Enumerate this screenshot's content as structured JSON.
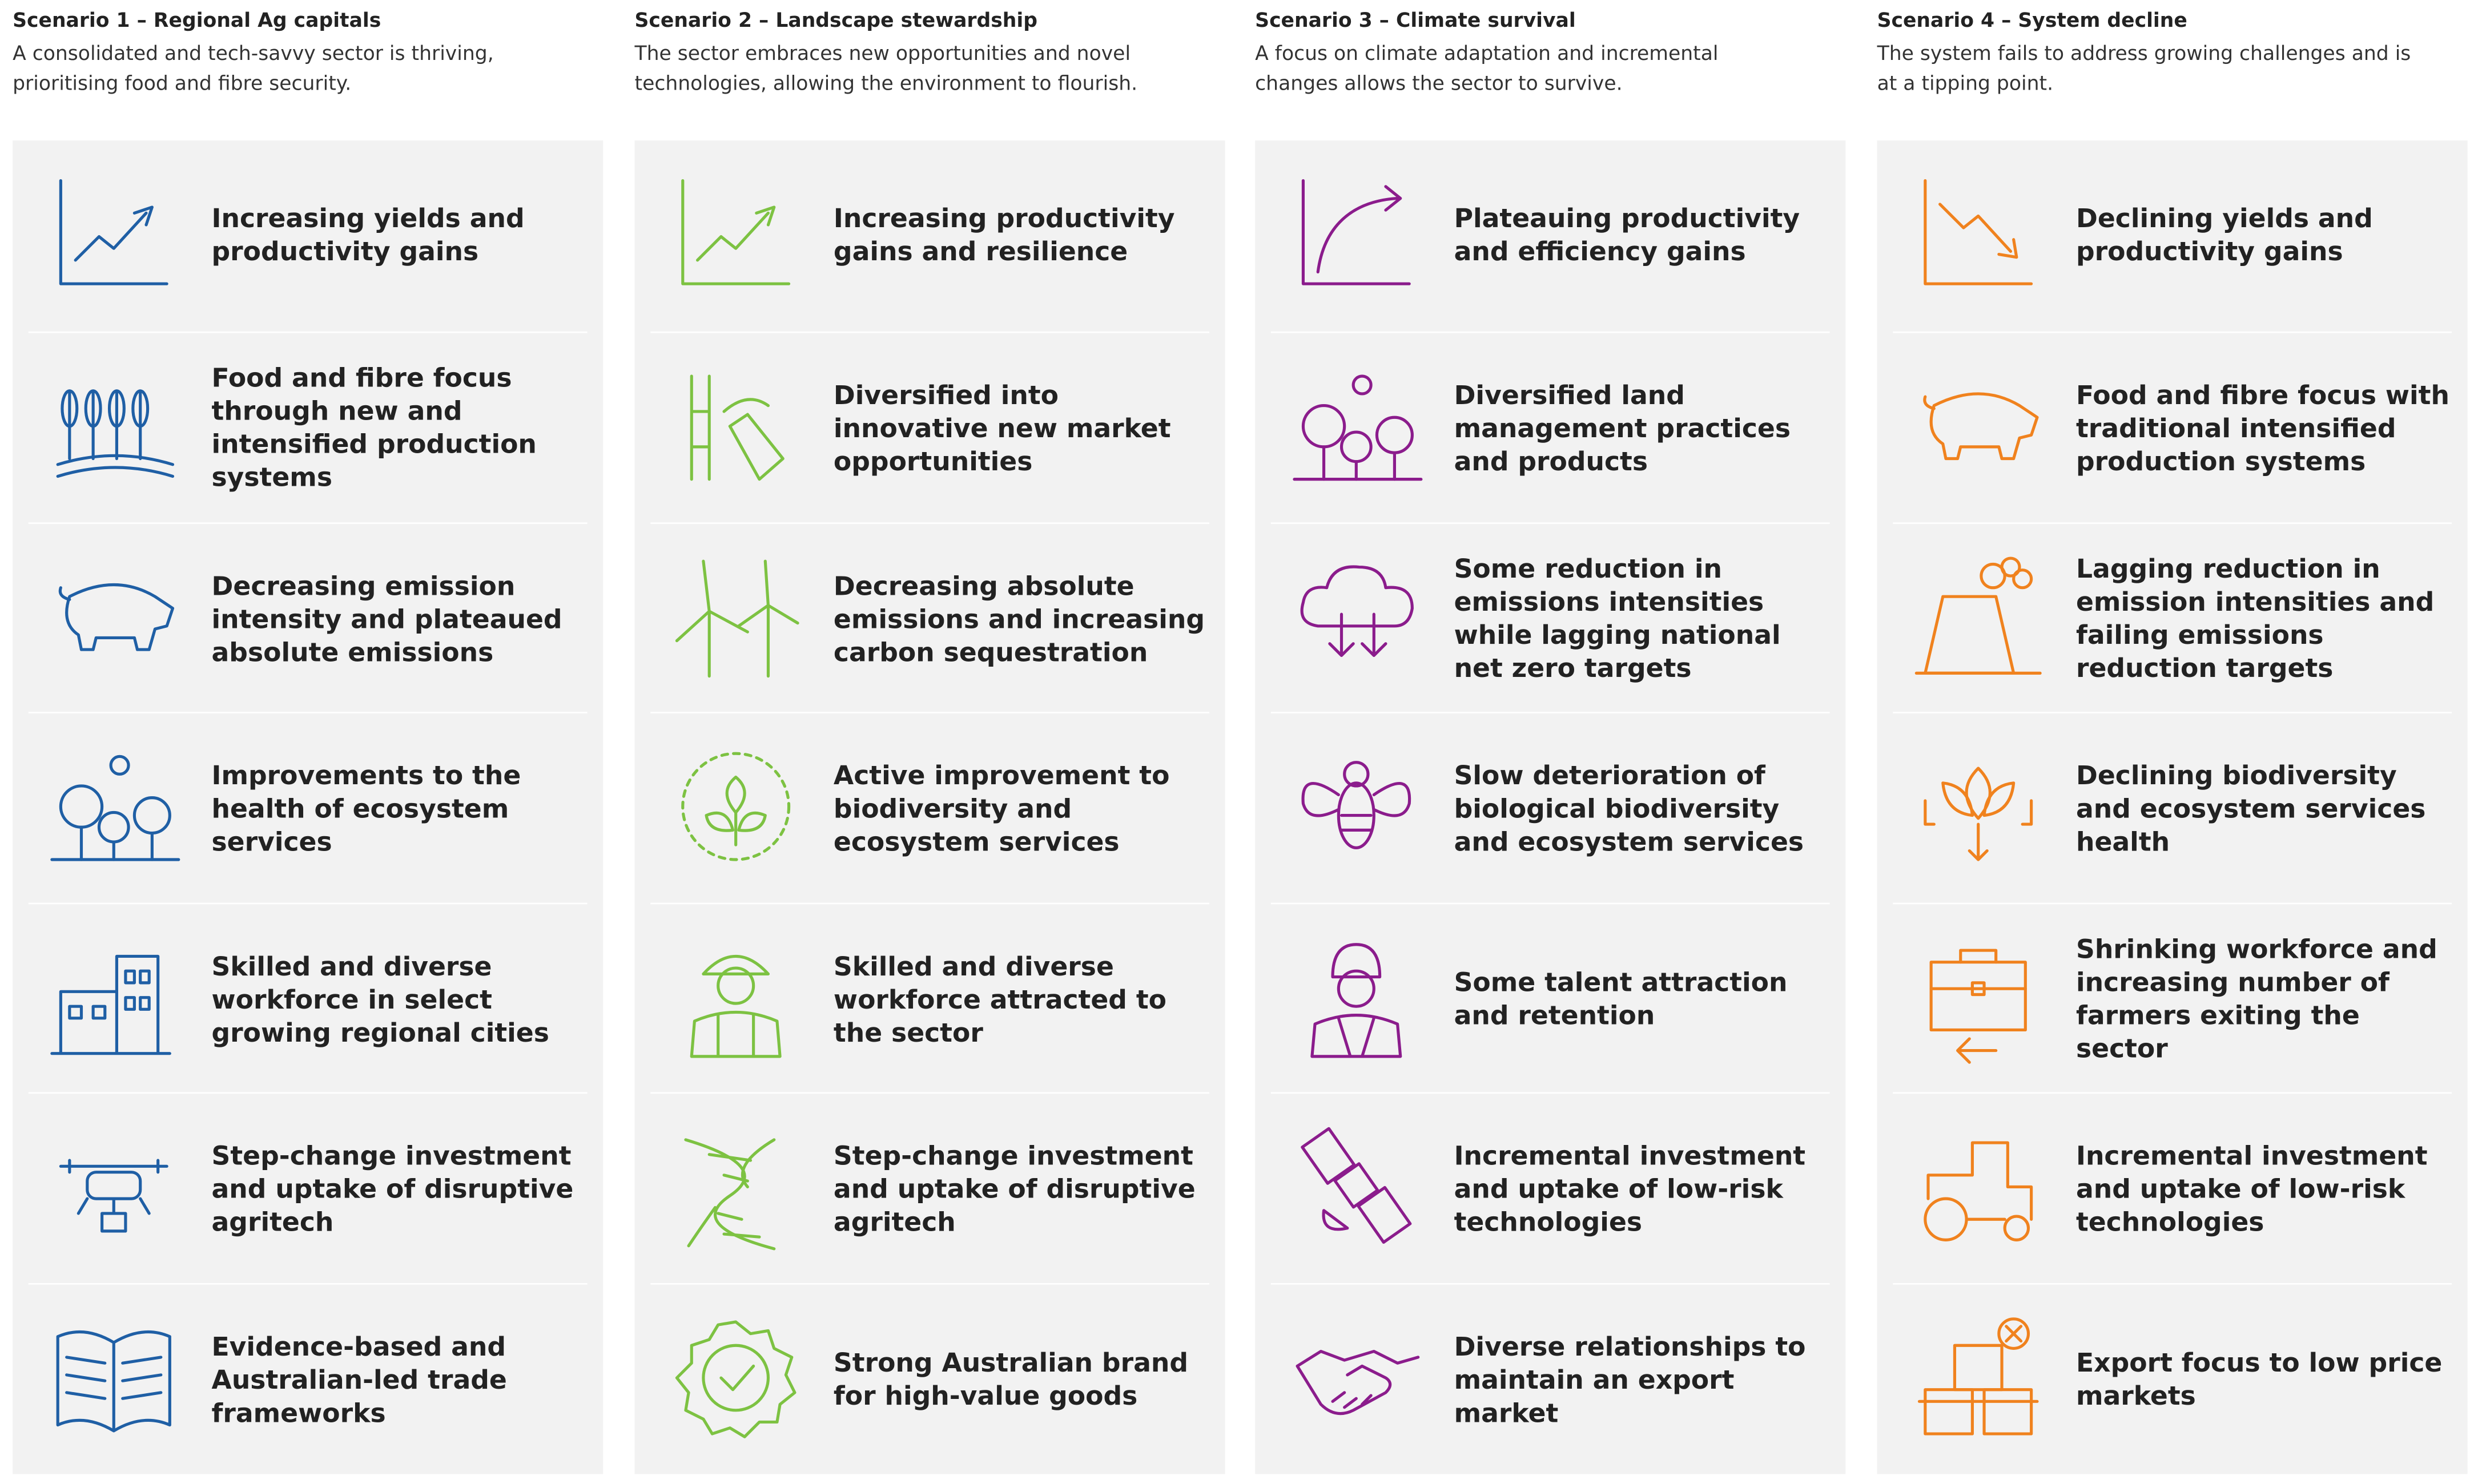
{
  "scenarios": [
    {
      "title": "Scenario 1 – Regional Ag capitals",
      "description": "A consolidated and tech-savvy sector is thriving, prioritising food and fibre security.",
      "items": [
        "Increasing yields and productivity gains",
        "Food and fibre focus through new and intensified production systems",
        "Decreasing emission intensity and plateaued absolute emissions",
        "Improvements to the health of ecosystem services",
        "Skilled and diverse workforce in select growing regional cities",
        "Step-change investment and uptake of disruptive agritech",
        "Evidence-based and Australian-led trade frameworks"
      ]
    },
    {
      "title": "Scenario 2 – Landscape stewardship",
      "description": "The sector embraces new opportunities and novel technologies, allowing the environment to flourish.",
      "items": [
        "Increasing productivity gains and resilience",
        "Diversified into innovative new market opportunities",
        "Decreasing absolute emissions and increasing carbon sequestration",
        "Active improvement to biodiversity and ecosystem services",
        "Skilled and diverse workforce attracted to the sector",
        "Step-change investment and uptake of disruptive agritech",
        "Strong Australian brand for high-value goods"
      ]
    },
    {
      "title": "Scenario 3 – Climate survival",
      "description": "A focus on climate adaptation and incremental changes allows the sector to survive.",
      "items": [
        "Plateauing productivity and efficiency gains",
        "Diversified land management practices and products",
        "Some reduction in emissions intensities while lagging national net zero targets",
        "Slow deterioration of biological biodiversity and ecosystem services",
        "Some talent attraction and retention",
        "Incremental investment and uptake of low-risk technologies",
        "Diverse relationships to maintain an export market"
      ]
    },
    {
      "title": "Scenario 4 – System decline",
      "description": "The system fails to address growing challenges and is at a tipping point.",
      "items": [
        "Declining yields and productivity gains",
        "Food and fibre focus with traditional intensified production systems",
        "Lagging reduction in emission intensities and failing emissions reduction targets",
        "Declining biodiversity and ecosystem services health",
        "Shrinking workforce and increasing number of farmers exiting the sector",
        "Incremental investment and uptake of low-risk technologies",
        "Export focus to low price markets"
      ]
    }
  ]
}
